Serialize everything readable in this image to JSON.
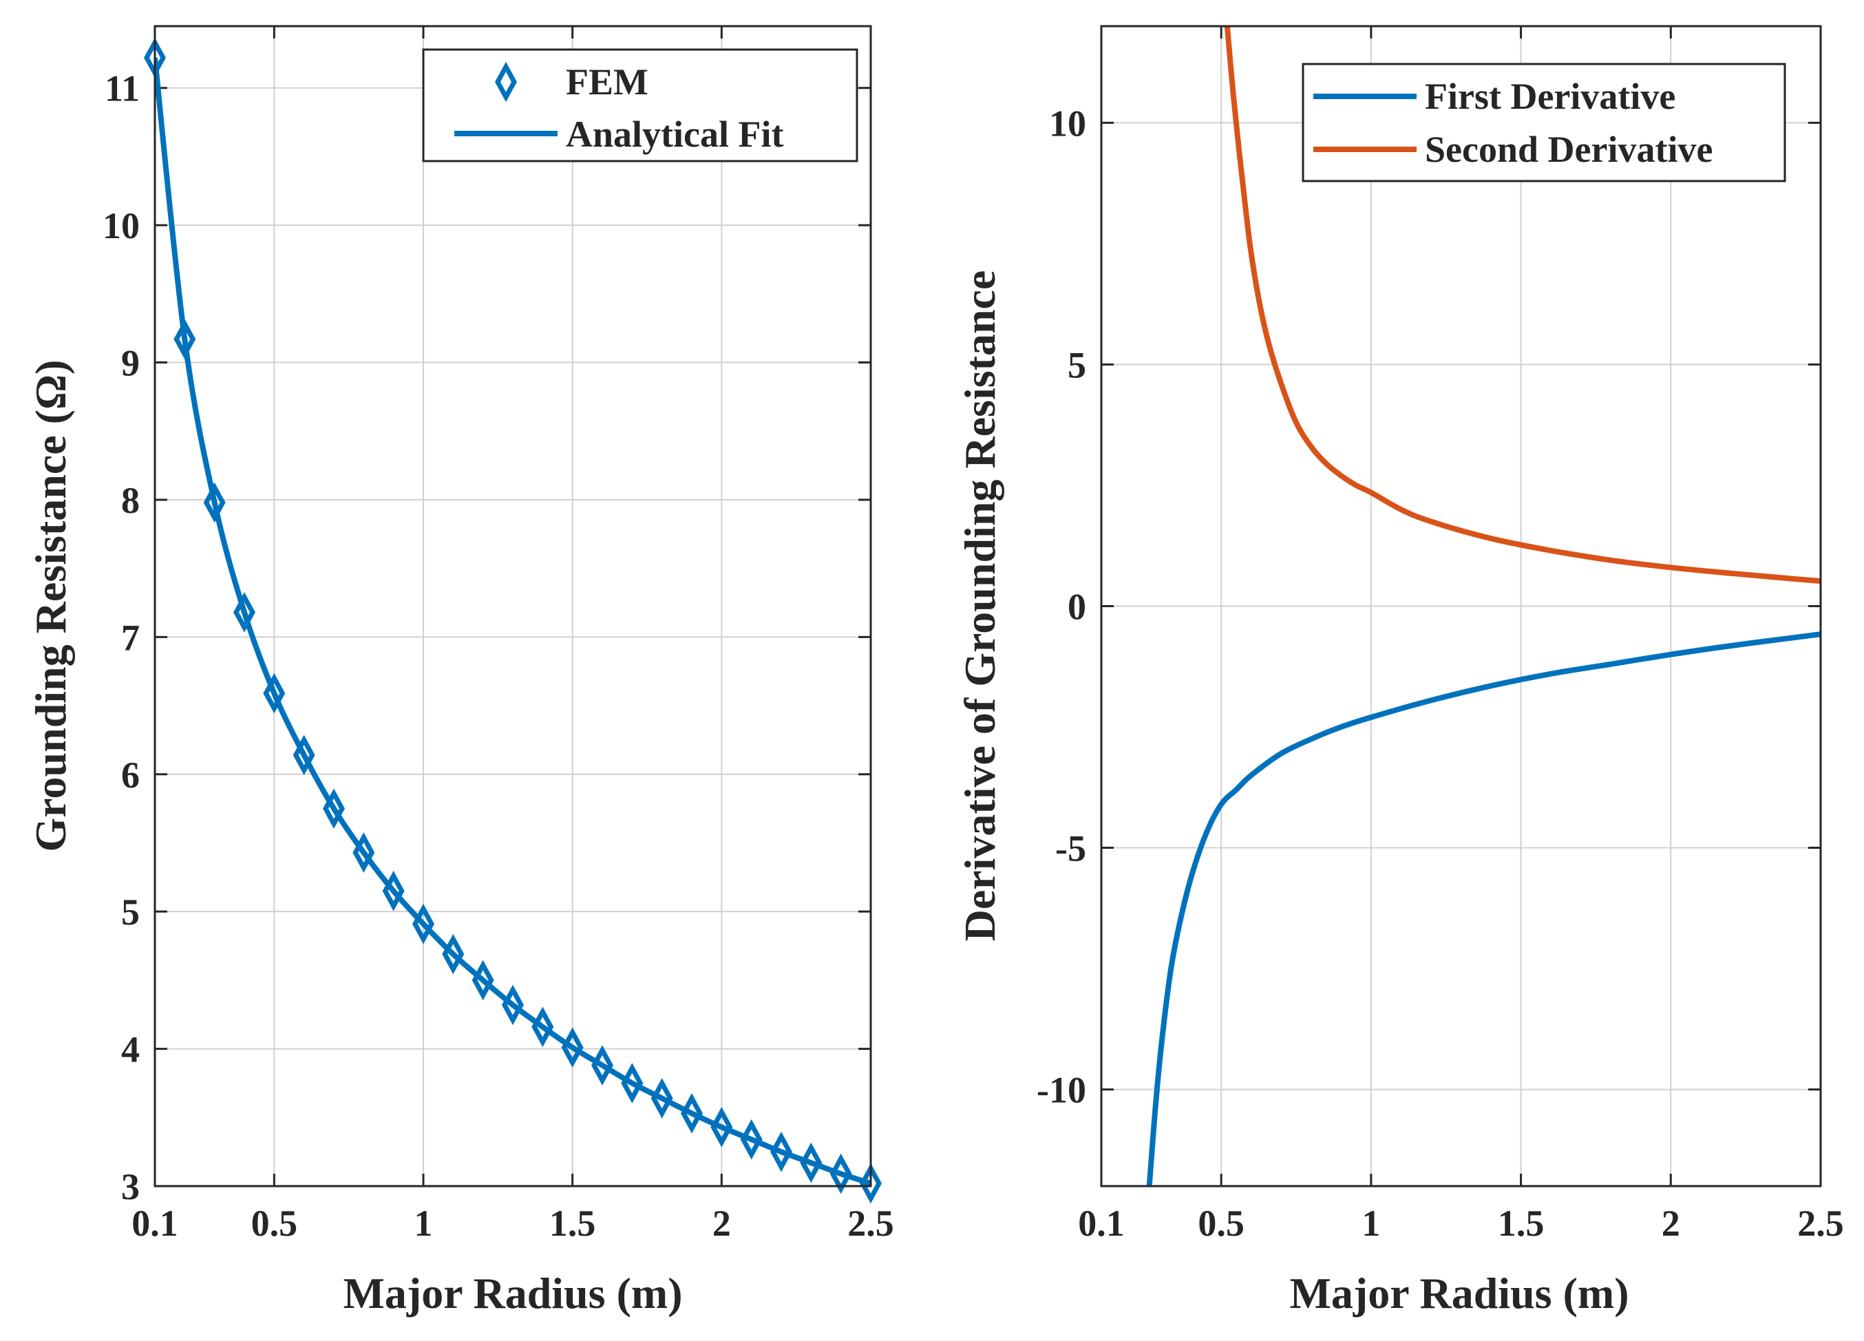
{
  "chart_data": [
    {
      "type": "line",
      "xlabel": "Major Radius (m)",
      "ylabel": "Grounding Resistance (Ω)",
      "xlim": [
        0.1,
        2.5
      ],
      "ylim": [
        3,
        11.45
      ],
      "xticks": [
        0.1,
        0.5,
        1,
        1.5,
        2,
        2.5
      ],
      "xtick_labels": [
        "0.1",
        "0.5",
        "1",
        "1.5",
        "2",
        "2.5"
      ],
      "yticks": [
        3,
        4,
        5,
        6,
        7,
        8,
        9,
        10,
        11
      ],
      "ytick_labels": [
        "3",
        "4",
        "5",
        "6",
        "7",
        "8",
        "9",
        "10",
        "11"
      ],
      "grid": true,
      "legend": "top-right",
      "series": [
        {
          "name": "FEM",
          "style": "markers",
          "marker": "diamond",
          "color": "#0072BD",
          "x": [
            0.1,
            0.2,
            0.3,
            0.4,
            0.5,
            0.6,
            0.7,
            0.8,
            0.9,
            1.0,
            1.1,
            1.2,
            1.3,
            1.4,
            1.5,
            1.6,
            1.7,
            1.8,
            1.9,
            2.0,
            2.1,
            2.2,
            2.3,
            2.4,
            2.5
          ],
          "y": [
            11.22,
            9.17,
            7.98,
            7.18,
            6.59,
            6.14,
            5.75,
            5.43,
            5.15,
            4.91,
            4.69,
            4.5,
            4.32,
            4.16,
            4.01,
            3.88,
            3.75,
            3.64,
            3.53,
            3.43,
            3.34,
            3.25,
            3.17,
            3.09,
            3.02
          ]
        },
        {
          "name": "Analytical Fit",
          "style": "line",
          "color": "#0072BD",
          "x": [
            0.1,
            0.2,
            0.3,
            0.4,
            0.5,
            0.6,
            0.7,
            0.8,
            0.9,
            1.0,
            1.1,
            1.2,
            1.3,
            1.4,
            1.5,
            1.6,
            1.7,
            1.8,
            1.9,
            2.0,
            2.1,
            2.2,
            2.3,
            2.4,
            2.5
          ],
          "y": [
            11.22,
            9.17,
            7.98,
            7.18,
            6.59,
            6.14,
            5.75,
            5.43,
            5.15,
            4.91,
            4.69,
            4.5,
            4.32,
            4.16,
            4.01,
            3.88,
            3.75,
            3.64,
            3.53,
            3.43,
            3.34,
            3.25,
            3.17,
            3.09,
            3.02
          ]
        }
      ]
    },
    {
      "type": "line",
      "xlabel": "Major Radius (m)",
      "ylabel": "Derivative of Grounding Resistance",
      "xlim": [
        0.1,
        2.5
      ],
      "ylim": [
        -12,
        12
      ],
      "xticks": [
        0.1,
        0.5,
        1,
        1.5,
        2,
        2.5
      ],
      "xtick_labels": [
        "0.1",
        "0.5",
        "1",
        "1.5",
        "2",
        "2.5"
      ],
      "yticks": [
        -10,
        -5,
        0,
        5,
        10
      ],
      "ytick_labels": [
        "-10",
        "-5",
        "0",
        "5",
        "10"
      ],
      "grid": true,
      "legend": "top-right",
      "series": [
        {
          "name": "First Derivative",
          "color": "#0072BD",
          "x": [
            0.26,
            0.28,
            0.3,
            0.33,
            0.36,
            0.4,
            0.45,
            0.5,
            0.55,
            0.6,
            0.7,
            0.8,
            0.9,
            1.0,
            1.2,
            1.4,
            1.6,
            1.8,
            2.0,
            2.2,
            2.4,
            2.5
          ],
          "y": [
            -12.0,
            -10.4,
            -9.1,
            -7.6,
            -6.6,
            -5.6,
            -4.7,
            -4.1,
            -3.8,
            -3.5,
            -3.05,
            -2.75,
            -2.5,
            -2.3,
            -1.95,
            -1.65,
            -1.4,
            -1.2,
            -1.0,
            -0.82,
            -0.66,
            -0.58
          ]
        },
        {
          "name": "Second Derivative",
          "color": "#D95319",
          "x": [
            0.52,
            0.54,
            0.56,
            0.58,
            0.6,
            0.63,
            0.66,
            0.7,
            0.75,
            0.8,
            0.85,
            0.9,
            0.95,
            1.0,
            1.1,
            1.2,
            1.4,
            1.6,
            1.8,
            2.0,
            2.2,
            2.4,
            2.5
          ],
          "y": [
            12.0,
            10.6,
            9.4,
            8.3,
            7.3,
            6.2,
            5.4,
            4.6,
            3.8,
            3.3,
            2.95,
            2.7,
            2.5,
            2.35,
            2.0,
            1.75,
            1.4,
            1.15,
            0.95,
            0.8,
            0.68,
            0.57,
            0.52
          ]
        }
      ]
    }
  ]
}
